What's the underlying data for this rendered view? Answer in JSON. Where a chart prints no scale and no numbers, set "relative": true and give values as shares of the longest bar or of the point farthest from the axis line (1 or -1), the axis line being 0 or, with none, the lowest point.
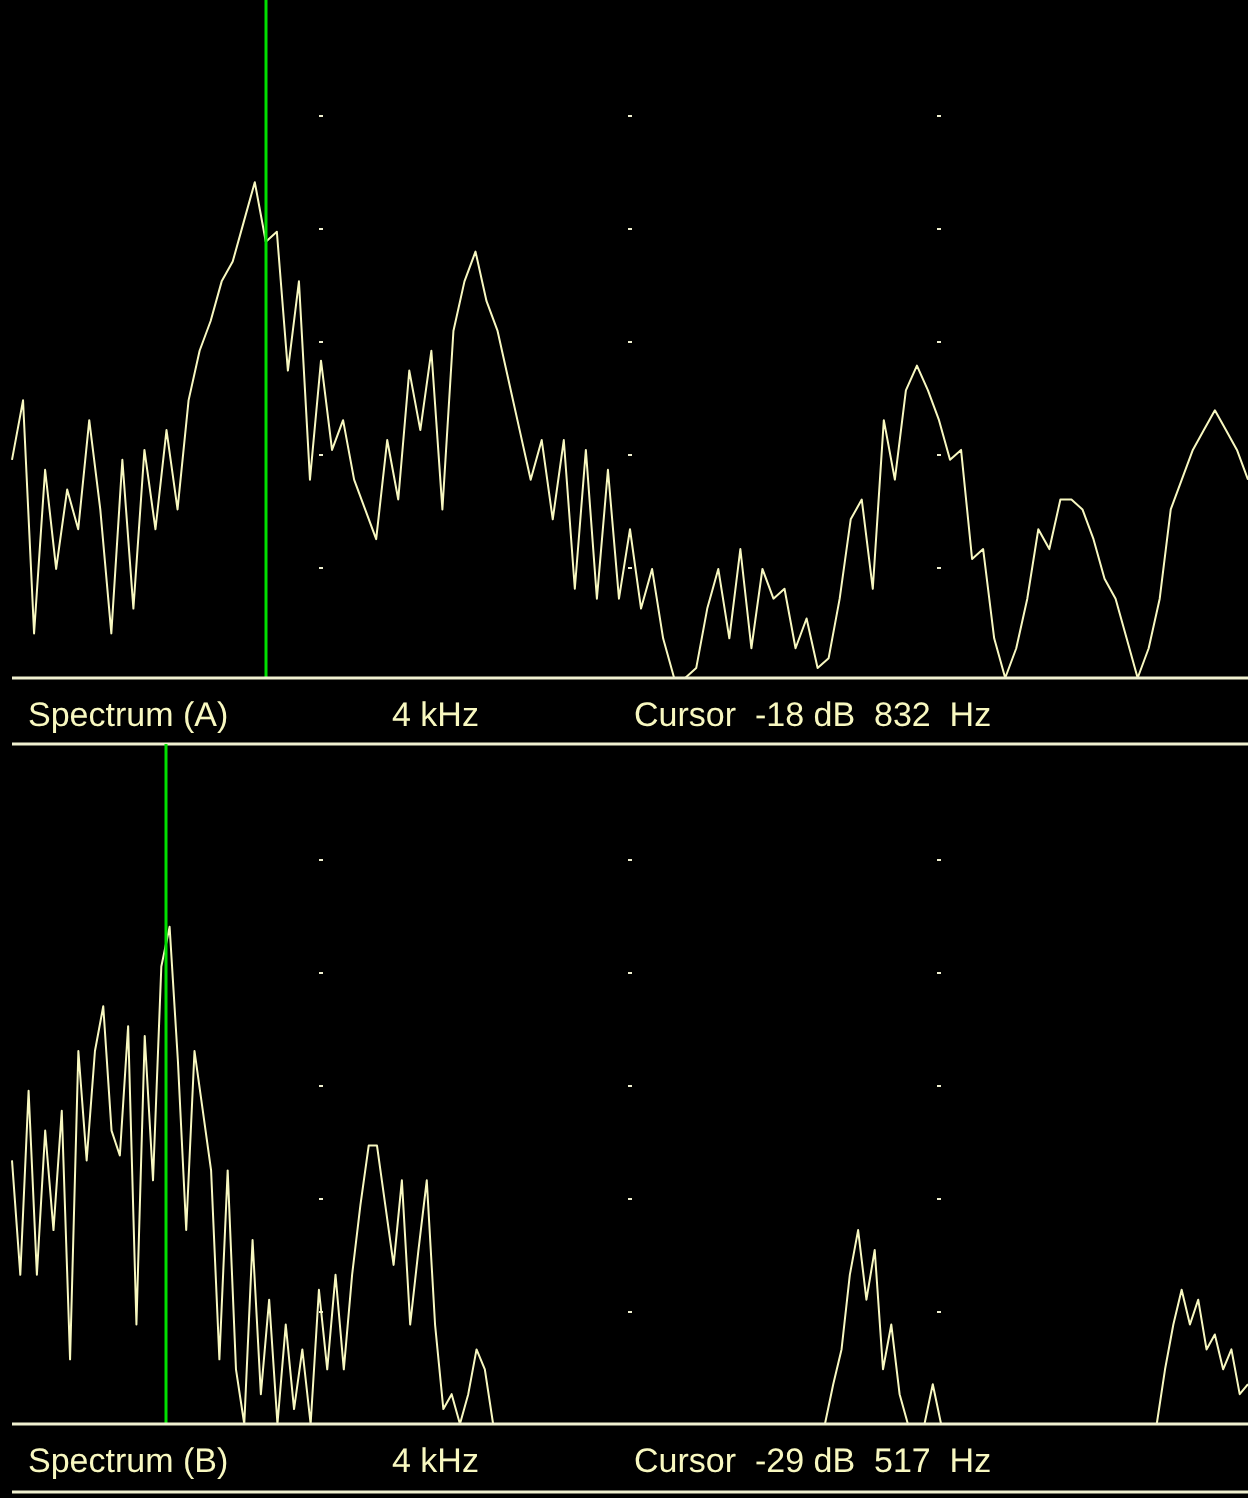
{
  "chart_data": [
    {
      "type": "line",
      "title": "Spectrum (A)",
      "annotations": [
        "4 kHz",
        "Cursor  -18 dB  832  Hz"
      ],
      "relative": true,
      "categories": [
        null,
        null,
        null,
        null,
        null,
        null,
        null,
        null,
        null,
        null,
        null,
        null,
        null,
        null,
        null,
        null,
        null,
        null,
        null,
        null,
        null,
        null,
        null,
        null,
        null,
        null,
        null,
        null,
        null,
        null,
        null,
        null,
        null,
        null,
        null,
        null,
        null,
        null,
        null,
        null,
        null,
        null,
        null,
        null,
        null,
        null,
        null,
        null,
        null,
        null,
        null,
        null,
        null,
        null,
        null,
        null,
        null,
        null,
        null,
        null,
        null,
        null,
        null,
        null,
        null,
        null,
        null,
        null,
        null,
        null,
        null,
        null,
        null,
        null,
        null,
        null,
        null,
        null,
        null,
        null,
        null,
        null,
        null,
        null,
        null,
        null,
        null,
        null,
        null,
        null,
        null,
        null,
        null,
        null,
        null,
        null,
        null,
        null,
        null,
        null,
        null,
        null,
        null,
        null,
        null,
        null,
        null,
        null,
        null,
        null,
        null,
        null,
        null
      ],
      "series": [
        {
          "color": "#f8f8c0",
          "values": [
            0.44,
            0.56,
            0.09,
            0.42,
            0.22,
            0.38,
            0.3,
            0.52,
            0.34,
            0.09,
            0.44,
            0.14,
            0.46,
            0.3,
            0.5,
            0.34,
            0.56,
            0.66,
            0.72,
            0.8,
            0.84,
            0.92,
            1,
            0.88,
            0.9,
            0.62,
            0.8,
            0.4,
            0.64,
            0.46,
            0.52,
            0.4,
            0.34,
            0.28,
            0.48,
            0.36,
            0.62,
            0.5,
            0.66,
            0.34,
            0.7,
            0.8,
            0.86,
            0.76,
            0.7,
            0.6,
            0.5,
            0.4,
            0.48,
            0.32,
            0.48,
            0.18,
            0.46,
            0.16,
            0.42,
            0.16,
            0.3,
            0.14,
            0.22,
            0.08,
            0,
            0,
            0.02,
            0.14,
            0.22,
            0.08,
            0.26,
            0.06,
            0.22,
            0.16,
            0.18,
            0.06,
            0.12,
            0.02,
            0.04,
            0.16,
            0.32,
            0.36,
            0.18,
            0.52,
            0.4,
            0.58,
            0.63,
            0.58,
            0.52,
            0.44,
            0.46,
            0.24,
            0.26,
            0.08,
            0,
            0.06,
            0.16,
            0.3,
            0.26,
            0.36,
            0.36,
            0.34,
            0.28,
            0.2,
            0.16,
            0.08,
            0,
            0.06,
            0.16,
            0.34,
            0.4,
            0.46,
            0.5,
            0.54,
            0.5,
            0.46,
            0.4
          ]
        }
      ]
    },
    {
      "type": "line",
      "title": "Spectrum (B)",
      "annotations": [
        "4 kHz",
        "Cursor  -29 dB  517  Hz"
      ],
      "relative": true,
      "categories": [
        null,
        null,
        null,
        null,
        null,
        null,
        null,
        null,
        null,
        null,
        null,
        null,
        null,
        null,
        null,
        null,
        null,
        null,
        null,
        null,
        null,
        null,
        null,
        null,
        null,
        null,
        null,
        null,
        null,
        null,
        null,
        null,
        null,
        null,
        null,
        null,
        null,
        null,
        null,
        null,
        null,
        null,
        null,
        null,
        null,
        null,
        null,
        null,
        null,
        null,
        null,
        null,
        null,
        null,
        null,
        null,
        null,
        null,
        null,
        null,
        null,
        null,
        null,
        null,
        null,
        null,
        null,
        null,
        null,
        null,
        null,
        null,
        null,
        null,
        null,
        null,
        null,
        null,
        null,
        null,
        null,
        null,
        null,
        null,
        null,
        null,
        null,
        null,
        null,
        null,
        null,
        null,
        null,
        null,
        null,
        null,
        null,
        null,
        null,
        null,
        null,
        null,
        null,
        null,
        null,
        null,
        null,
        null,
        null,
        null,
        null,
        null,
        null,
        null,
        null,
        null,
        null,
        null,
        null,
        null,
        null,
        null,
        null,
        null,
        null,
        null,
        null,
        null,
        null,
        null,
        null,
        null,
        null,
        null,
        null,
        null,
        null,
        null,
        null,
        null,
        null,
        null,
        null,
        null,
        null,
        null,
        null,
        null,
        null,
        null
      ],
      "series": [
        {
          "color": "#f8f8c0",
          "values": [
            0.53,
            0.3,
            0.67,
            0.3,
            0.59,
            0.39,
            0.63,
            0.13,
            0.75,
            0.53,
            0.75,
            0.84,
            0.59,
            0.54,
            0.8,
            0.2,
            0.78,
            0.49,
            0.92,
            1,
            0.73,
            0.39,
            0.75,
            0.63,
            0.51,
            0.13,
            0.51,
            0.11,
            0,
            0.37,
            0.06,
            0.25,
            0,
            0.2,
            0.03,
            0.15,
            0,
            0.27,
            0.11,
            0.3,
            0.11,
            0.3,
            0.44,
            0.56,
            0.56,
            0.44,
            0.32,
            0.49,
            0.2,
            0.35,
            0.49,
            0.2,
            0.03,
            0.06,
            0,
            0.06,
            0.15,
            0.11,
            0,
            0,
            0,
            0,
            0,
            0,
            0,
            0,
            0,
            0,
            0,
            0,
            0,
            0,
            0,
            0,
            0,
            0,
            0,
            0,
            0,
            0,
            0,
            0,
            0,
            0,
            0,
            0,
            0,
            0,
            0,
            0,
            0,
            0,
            0,
            0,
            0,
            0,
            0,
            0,
            0,
            0.08,
            0.15,
            0.3,
            0.39,
            0.25,
            0.35,
            0.11,
            0.2,
            0.06,
            0,
            0,
            0,
            0.08,
            0,
            0,
            0,
            0,
            0,
            0,
            0,
            0,
            0,
            0,
            0,
            0,
            0,
            0,
            0,
            0,
            0,
            0,
            0,
            0,
            0,
            0,
            0,
            0,
            0,
            0,
            0,
            0.11,
            0.2,
            0.27,
            0.2,
            0.25,
            0.15,
            0.18,
            0.11,
            0.15,
            0.06,
            0.08
          ]
        }
      ]
    }
  ]
}
